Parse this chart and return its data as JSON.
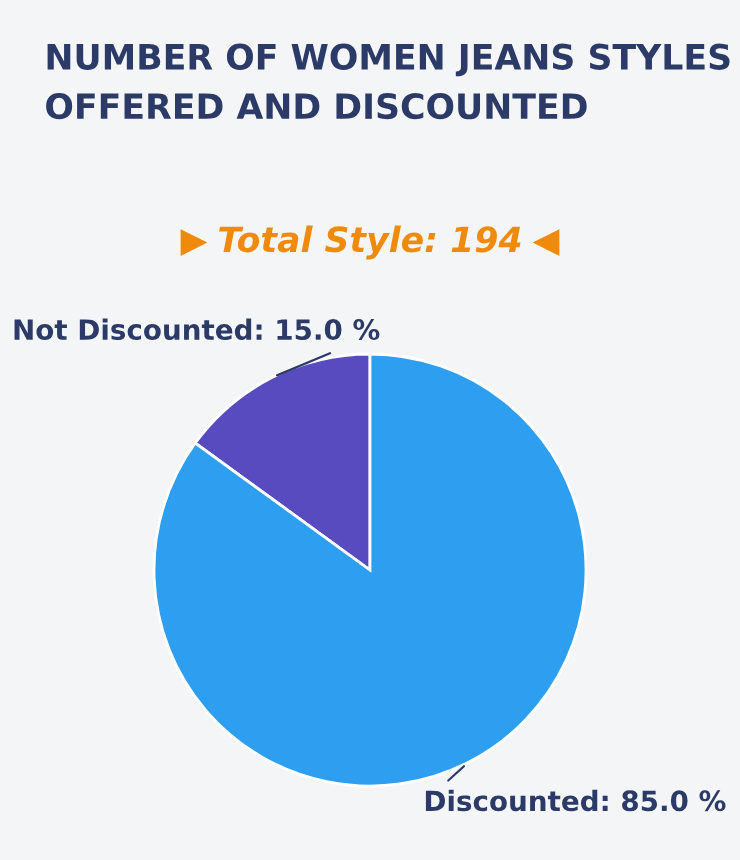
{
  "chart_data": {
    "type": "pie",
    "title": "NUMBER OF WOMEN JEANS STYLES OFFERED AND DISCOUNTED",
    "subtitle": "Total Style: 194",
    "categories": [
      "Not Discounted",
      "Discounted"
    ],
    "values": [
      15.0,
      85.0
    ],
    "value_labels": [
      "15.0 %",
      "85.0 %"
    ],
    "colors": [
      "#574bbf",
      "#2e9ef0"
    ],
    "legend": false
  }
}
